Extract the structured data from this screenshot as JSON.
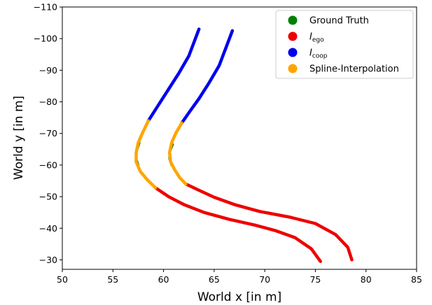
{
  "chart_data": {
    "type": "scatter",
    "xlabel": "World x [in m]",
    "ylabel": "World y [in m]",
    "xlim": [
      50,
      85
    ],
    "ylim": [
      -27,
      -110
    ],
    "xticks": [
      50,
      55,
      60,
      65,
      70,
      75,
      80,
      85
    ],
    "yticks": [
      -110,
      -100,
      -90,
      -80,
      -70,
      -60,
      -50,
      -40,
      -30
    ],
    "xtick_labels": [
      "50",
      "55",
      "60",
      "65",
      "70",
      "75",
      "80",
      "85"
    ],
    "ytick_labels": [
      "−110",
      "−100",
      "−90",
      "−80",
      "−70",
      "−60",
      "−50",
      "−40",
      "−30"
    ],
    "grid": false,
    "legend_placement": "top-right",
    "series": [
      {
        "name": "Ground Truth",
        "label_main": "Ground Truth",
        "label_sub": "",
        "color": "#008000",
        "tracks": [
          [
            [
              57.6,
              -67
            ],
            [
              57.3,
              -64
            ],
            [
              57.3,
              -62
            ],
            [
              57.5,
              -60
            ]
          ],
          [
            [
              60.9,
              -66.5
            ],
            [
              60.6,
              -64
            ],
            [
              60.6,
              -62
            ],
            [
              60.8,
              -60
            ]
          ]
        ]
      },
      {
        "name": "I ego",
        "label_main": "I",
        "label_sub": "ego",
        "color": "#ee0000",
        "tracks": [
          [
            [
              59.2,
              -52.8
            ],
            [
              60.5,
              -50
            ],
            [
              62,
              -47.5
            ],
            [
              64,
              -45
            ],
            [
              66.5,
              -42.8
            ],
            [
              69,
              -41
            ],
            [
              71,
              -39.3
            ],
            [
              73,
              -37
            ],
            [
              74.6,
              -33.5
            ],
            [
              75.5,
              -29.5
            ]
          ],
          [
            [
              62.2,
              -54
            ],
            [
              63.5,
              -52
            ],
            [
              65,
              -49.8
            ],
            [
              67,
              -47.5
            ],
            [
              69.5,
              -45.3
            ],
            [
              72.5,
              -43.5
            ],
            [
              75,
              -41.5
            ],
            [
              77,
              -38
            ],
            [
              78.2,
              -34
            ],
            [
              78.6,
              -30
            ]
          ]
        ]
      },
      {
        "name": "I coop",
        "label_main": "I",
        "label_sub": "coop",
        "color": "#0000ee",
        "tracks": [
          [
            [
              58.5,
              -74
            ],
            [
              59.5,
              -79
            ],
            [
              60.5,
              -84
            ],
            [
              61.5,
              -89
            ],
            [
              62.5,
              -94.5
            ],
            [
              63.5,
              -103
            ]
          ],
          [
            [
              61.8,
              -73.3
            ],
            [
              62.6,
              -77
            ],
            [
              63.5,
              -81
            ],
            [
              64.5,
              -86
            ],
            [
              65.5,
              -91.5
            ],
            [
              66.8,
              -102.5
            ]
          ]
        ]
      },
      {
        "name": "Spline-Interpolation",
        "label_main": "Spline-Interpolation",
        "label_sub": "",
        "color": "#ffa500",
        "tracks": [
          [
            [
              58.5,
              -74
            ],
            [
              57.9,
              -70
            ],
            [
              57.5,
              -67
            ],
            [
              57.3,
              -64
            ],
            [
              57.3,
              -61
            ],
            [
              57.7,
              -58
            ],
            [
              58.4,
              -55.3
            ],
            [
              59.2,
              -52.8
            ]
          ],
          [
            [
              61.8,
              -73.3
            ],
            [
              61.2,
              -70
            ],
            [
              60.8,
              -67
            ],
            [
              60.6,
              -64
            ],
            [
              60.7,
              -61
            ],
            [
              61.1,
              -58.5
            ],
            [
              61.6,
              -56
            ],
            [
              62.2,
              -54
            ]
          ]
        ]
      }
    ]
  }
}
